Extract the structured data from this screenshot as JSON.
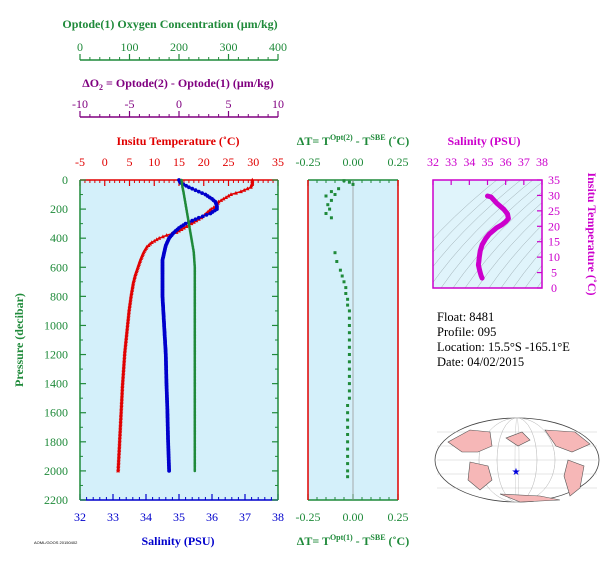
{
  "colors": {
    "oxygen": "#1f8a3a",
    "delta_o2": "#800080",
    "temperature": "#e00000",
    "salinity": "#0000cc",
    "salinity_inset": "#cc00cc",
    "panel_bg": "#d4f0fa",
    "inset_bg": "#e0f4fb"
  },
  "labels": {
    "o2_title": "Optode(1) Oxygen Concentration (µm/kg)",
    "delta_title": "ΔO2 = Optode(2) - Optode(1)   (µm/kg)",
    "temp_title": "Insitu Temperature (˚C)",
    "sal_bottom_title": "Salinity (PSU)",
    "pressure_title": "Pressure (decibar)",
    "dt_top_title": "ΔT= T^Opt(2) - T^SBE (˚C)",
    "dt_bottom_title": "ΔT= T^Opt(1) - T^SBE (˚C)",
    "inset_sal_title": "Salinity (PSU)",
    "inset_temp_title": "Insitu Temperature (˚C)",
    "footer_mark": "AOML/GOOS 20150402"
  },
  "info": {
    "float": "Float:  8481",
    "profile": "Profile:  095",
    "location": "Location:  15.5°S  -165.1°E",
    "date": "Date:  04/02/2015"
  },
  "chart_data": [
    {
      "type": "line",
      "panel": "main",
      "yaxis": {
        "label": "Pressure (decibar)",
        "range": [
          2200,
          0
        ],
        "ticks": [
          0,
          200,
          400,
          600,
          800,
          1000,
          1200,
          1400,
          1600,
          1800,
          2000,
          2200
        ]
      },
      "axes": {
        "oxygen": {
          "label": "Optode(1) Oxygen Concentration (µm/kg)",
          "range": [
            0,
            400
          ],
          "ticks": [
            0,
            100,
            200,
            300,
            400
          ]
        },
        "delta_o2": {
          "label": "ΔO2 = Optode(2) - Optode(1) (µm/kg)",
          "range": [
            -10,
            10
          ],
          "ticks": [
            -10,
            -5,
            0,
            5,
            10
          ]
        },
        "temperature": {
          "label": "Insitu Temperature (˚C)",
          "range": [
            -5,
            35
          ],
          "ticks": [
            -5,
            0,
            5,
            10,
            15,
            20,
            25,
            30,
            35
          ]
        },
        "salinity": {
          "label": "Salinity (PSU)",
          "range": [
            32,
            38
          ],
          "ticks": [
            32,
            33,
            34,
            35,
            36,
            37,
            38
          ]
        }
      },
      "series": [
        {
          "name": "Insitu Temperature",
          "axis": "temperature",
          "p": [
            0,
            20,
            50,
            80,
            100,
            130,
            150,
            180,
            200,
            230,
            260,
            300,
            330,
            360,
            380,
            400,
            430,
            460,
            500,
            550,
            600,
            650,
            700,
            800,
            900,
            1000,
            1100,
            1200,
            1300,
            1400,
            1600,
            1800,
            2000
          ],
          "v": [
            29.8,
            29.8,
            29.5,
            27.5,
            25.5,
            24,
            23,
            22.5,
            21.5,
            20.5,
            19.5,
            17.5,
            16,
            14.5,
            12.5,
            11,
            9.5,
            8.5,
            7.8,
            7.2,
            6.7,
            6.2,
            5.8,
            5.3,
            4.9,
            4.6,
            4.3,
            4.0,
            3.8,
            3.6,
            3.3,
            3.0,
            2.7
          ]
        },
        {
          "name": "Salinity",
          "axis": "salinity",
          "p": [
            0,
            20,
            50,
            80,
            100,
            130,
            150,
            180,
            200,
            230,
            260,
            300,
            330,
            360,
            400,
            450,
            500,
            550,
            600,
            700,
            800,
            1000,
            1200,
            1400,
            1600,
            1800,
            2000
          ],
          "v": [
            35.0,
            35.05,
            35.3,
            35.6,
            35.8,
            36.0,
            36.1,
            36.15,
            36.15,
            35.95,
            35.6,
            35.2,
            35.0,
            34.85,
            34.7,
            34.6,
            34.55,
            34.5,
            34.5,
            34.5,
            34.5,
            34.55,
            34.6,
            34.62,
            34.65,
            34.67,
            34.7
          ]
        },
        {
          "name": "Oxygen",
          "axis": "oxygen",
          "p": [
            0,
            50,
            100,
            200,
            300,
            400,
            500,
            600,
            800,
            1000,
            1200,
            1400,
            1600,
            1800,
            2000
          ],
          "v": [
            205,
            207,
            210,
            215,
            220,
            225,
            230,
            232,
            232,
            232,
            232,
            232,
            232,
            232,
            232
          ]
        }
      ]
    },
    {
      "type": "scatter",
      "panel": "delta_t",
      "xaxis": {
        "range": [
          -0.25,
          0.25
        ],
        "ticks": [
          -0.25,
          0,
          0.25
        ]
      },
      "yaxis": {
        "range": [
          2200,
          0
        ]
      },
      "series": [
        {
          "name": "ΔT",
          "x": [
            -0.05,
            -0.02,
            0.0,
            -0.08,
            -0.12,
            -0.1,
            -0.15,
            -0.12,
            -0.14,
            -0.13,
            -0.15,
            -0.12,
            -0.1,
            -0.09,
            -0.07,
            -0.06,
            -0.05,
            -0.04,
            -0.04,
            -0.03,
            -0.03,
            -0.02,
            -0.02,
            -0.02,
            -0.02,
            -0.02,
            -0.02,
            -0.02,
            -0.02,
            -0.02,
            -0.02,
            -0.02,
            -0.02,
            -0.02,
            -0.03,
            -0.03,
            -0.03,
            -0.03,
            -0.03,
            -0.03,
            -0.03,
            -0.03,
            -0.03,
            -0.03,
            -0.03
          ],
          "p": [
            5,
            15,
            30,
            60,
            80,
            100,
            110,
            140,
            170,
            200,
            230,
            260,
            500,
            560,
            620,
            660,
            700,
            740,
            780,
            820,
            860,
            900,
            950,
            1000,
            1050,
            1100,
            1150,
            1200,
            1250,
            1300,
            1350,
            1400,
            1450,
            1500,
            1550,
            1600,
            1650,
            1700,
            1750,
            1800,
            1850,
            1900,
            1950,
            2000,
            2040
          ]
        }
      ]
    },
    {
      "type": "line",
      "panel": "inset_ts",
      "xaxis": {
        "label": "Salinity (PSU)",
        "range": [
          32,
          38
        ],
        "ticks": [
          32,
          33,
          34,
          35,
          36,
          37,
          38
        ]
      },
      "yaxis": {
        "label": "Insitu Temperature (˚C)",
        "range": [
          0,
          35
        ],
        "ticks": [
          0,
          5,
          10,
          15,
          20,
          25,
          30,
          35
        ]
      },
      "series": [
        {
          "name": "T-S",
          "s": [
            35.0,
            35.2,
            35.5,
            35.9,
            36.1,
            36.15,
            36.0,
            35.8,
            35.5,
            35.1,
            34.9,
            34.7,
            34.6,
            34.55,
            34.52,
            34.5,
            34.55,
            34.6,
            34.65,
            34.7
          ],
          "t": [
            29.8,
            29.5,
            27.5,
            25.5,
            24,
            22.5,
            21.5,
            20.5,
            19.5,
            17.5,
            16,
            14,
            12,
            10,
            8.5,
            7.5,
            6.2,
            5,
            4,
            3.2
          ]
        }
      ]
    }
  ]
}
